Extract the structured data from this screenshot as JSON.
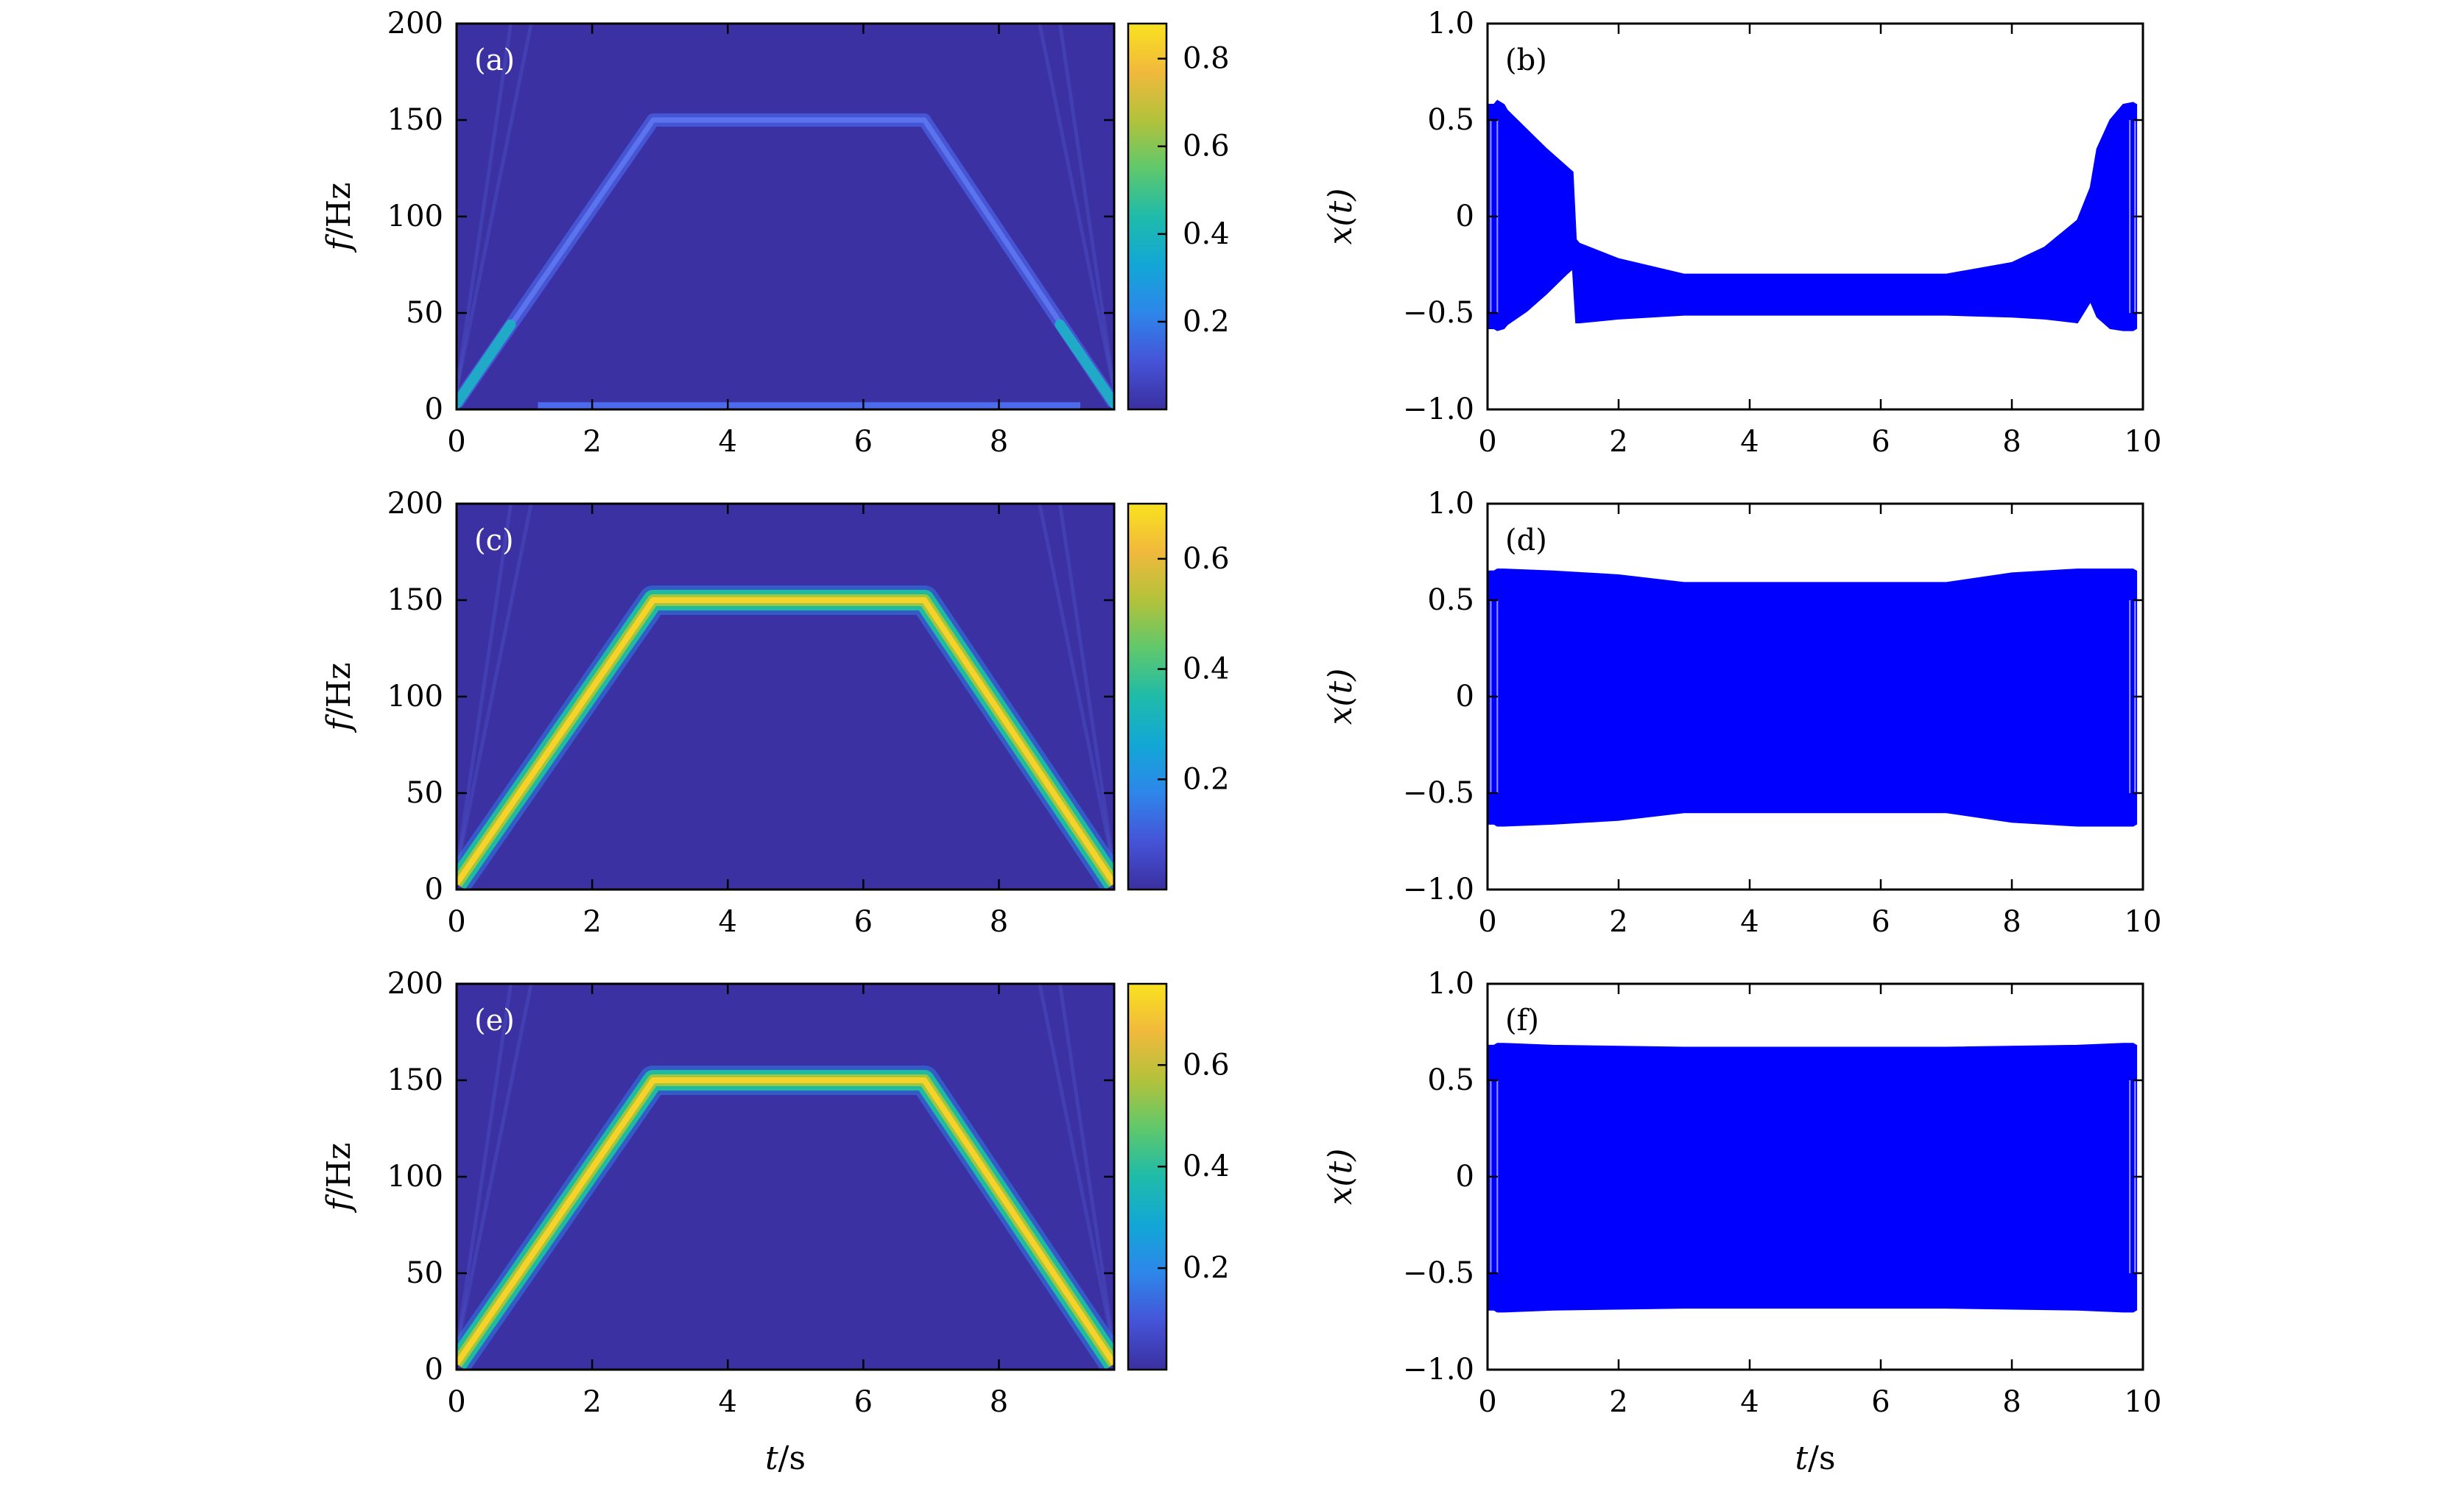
{
  "colors": {
    "spectrogram_background": "#3b31a3",
    "signal": "#0000ff",
    "frame": "#000000",
    "colormap": [
      "#3b2fa0",
      "#4554d8",
      "#2e86ea",
      "#12a7d6",
      "#1fbbaa",
      "#5fc86c",
      "#b3c23b",
      "#f1b93c",
      "#f9e21f"
    ]
  },
  "chart_data": [
    {
      "id": "a",
      "panel_label": "(a)",
      "type": "heatmap",
      "xlabel_var": "t",
      "xlabel_unit": "/s",
      "ylabel_var": "f",
      "ylabel_unit": "/Hz",
      "xlim": [
        0,
        9.7
      ],
      "ylim": [
        0,
        200
      ],
      "xticks": [
        0,
        2,
        4,
        6,
        8
      ],
      "yticks": [
        0,
        50,
        100,
        150,
        200
      ],
      "colorbar": {
        "min": 0,
        "max": 0.88,
        "ticks": [
          0.2,
          0.4,
          0.6,
          0.8
        ]
      },
      "ridge": {
        "t": [
          0,
          2.9,
          6.9,
          9.7
        ],
        "f": [
          3,
          150,
          150,
          3
        ],
        "peak_intensity": 0.15
      },
      "low_band": {
        "f": 2,
        "t_start": 1.2,
        "t_end": 9.2,
        "intensity": 0.08
      },
      "onset_intensity": 0.35
    },
    {
      "id": "b",
      "panel_label": "(b)",
      "type": "area",
      "xlabel_var": "t",
      "xlabel_unit": "/s",
      "ylabel_var": "x",
      "ylabel_unit": "(t)",
      "xlim": [
        0,
        10
      ],
      "ylim": [
        -1.0,
        1.0
      ],
      "xticks": [
        0,
        2,
        4,
        6,
        8,
        10
      ],
      "yticks": [
        1.0,
        0.5,
        0,
        -0.5,
        -1.0
      ],
      "ytick_labels": [
        "1.0",
        "0.5",
        "0",
        "−0.5",
        "−1.0"
      ],
      "envelope_t": [
        0,
        0.1,
        0.15,
        0.25,
        0.3,
        0.6,
        0.9,
        1.2,
        1.3,
        1.35,
        1.4,
        2.0,
        3.0,
        7.0,
        8.0,
        8.5,
        9.0,
        9.2,
        9.3,
        9.5,
        9.7,
        9.85,
        9.9
      ],
      "envelope_upper": [
        0.58,
        0.58,
        0.6,
        0.58,
        0.55,
        0.45,
        0.35,
        0.26,
        0.23,
        -0.12,
        -0.14,
        -0.22,
        -0.3,
        -0.3,
        -0.24,
        -0.16,
        -0.02,
        0.15,
        0.35,
        0.5,
        0.58,
        0.59,
        0.58
      ],
      "envelope_lower": [
        -0.58,
        -0.58,
        -0.59,
        -0.58,
        -0.56,
        -0.49,
        -0.4,
        -0.3,
        -0.27,
        -0.55,
        -0.55,
        -0.53,
        -0.51,
        -0.51,
        -0.52,
        -0.53,
        -0.55,
        -0.44,
        -0.52,
        -0.58,
        -0.59,
        -0.59,
        -0.58
      ]
    },
    {
      "id": "c",
      "panel_label": "(c)",
      "type": "heatmap",
      "xlabel_var": "t",
      "xlabel_unit": "/s",
      "ylabel_var": "f",
      "ylabel_unit": "/Hz",
      "xlim": [
        0,
        9.7
      ],
      "ylim": [
        0,
        200
      ],
      "xticks": [
        0,
        2,
        4,
        6,
        8
      ],
      "yticks": [
        0,
        50,
        100,
        150,
        200
      ],
      "colorbar": {
        "min": 0,
        "max": 0.7,
        "ticks": [
          0.2,
          0.4,
          0.6
        ]
      },
      "ridge": {
        "t": [
          0,
          2.9,
          6.9,
          9.7
        ],
        "f": [
          3,
          150,
          150,
          3
        ],
        "peak_intensity": 0.68
      }
    },
    {
      "id": "d",
      "panel_label": "(d)",
      "type": "area",
      "xlabel_var": "t",
      "xlabel_unit": "/s",
      "ylabel_var": "x",
      "ylabel_unit": "(t)",
      "xlim": [
        0,
        10
      ],
      "ylim": [
        -1.0,
        1.0
      ],
      "xticks": [
        0,
        2,
        4,
        6,
        8,
        10
      ],
      "yticks": [
        1.0,
        0.5,
        0,
        -0.5,
        -1.0
      ],
      "ytick_labels": [
        "1.0",
        "0.5",
        "0",
        "−0.5",
        "−1.0"
      ],
      "envelope_t": [
        0,
        0.1,
        0.15,
        0.25,
        1.0,
        2.0,
        3.0,
        7.0,
        8.0,
        9.0,
        9.7,
        9.85,
        9.9
      ],
      "envelope_upper": [
        0.65,
        0.65,
        0.66,
        0.66,
        0.65,
        0.63,
        0.59,
        0.59,
        0.64,
        0.66,
        0.66,
        0.66,
        0.65
      ],
      "envelope_lower": [
        -0.66,
        -0.66,
        -0.67,
        -0.67,
        -0.66,
        -0.64,
        -0.6,
        -0.6,
        -0.65,
        -0.67,
        -0.67,
        -0.67,
        -0.66
      ]
    },
    {
      "id": "e",
      "panel_label": "(e)",
      "type": "heatmap",
      "xlabel_var": "t",
      "xlabel_unit": "/s",
      "ylabel_var": "f",
      "ylabel_unit": "/Hz",
      "xlim": [
        0,
        9.7
      ],
      "ylim": [
        0,
        200
      ],
      "xticks": [
        0,
        2,
        4,
        6,
        8
      ],
      "yticks": [
        0,
        50,
        100,
        150,
        200
      ],
      "colorbar": {
        "min": 0,
        "max": 0.76,
        "ticks": [
          0.2,
          0.4,
          0.6
        ]
      },
      "ridge": {
        "t": [
          0,
          2.9,
          6.9,
          9.7
        ],
        "f": [
          3,
          150,
          150,
          3
        ],
        "peak_intensity": 0.74
      }
    },
    {
      "id": "f",
      "panel_label": "(f)",
      "type": "area",
      "xlabel_var": "t",
      "xlabel_unit": "/s",
      "ylabel_var": "x",
      "ylabel_unit": "(t)",
      "xlim": [
        0,
        10
      ],
      "ylim": [
        -1.0,
        1.0
      ],
      "xticks": [
        0,
        2,
        4,
        6,
        8,
        10
      ],
      "yticks": [
        1.0,
        0.5,
        0,
        -0.5,
        -1.0
      ],
      "ytick_labels": [
        "1.0",
        "0.5",
        "0",
        "−0.5",
        "−1.0"
      ],
      "envelope_t": [
        0,
        0.1,
        0.15,
        0.25,
        1.0,
        3.0,
        7.0,
        9.0,
        9.7,
        9.85,
        9.9
      ],
      "envelope_upper": [
        0.68,
        0.68,
        0.69,
        0.69,
        0.68,
        0.67,
        0.67,
        0.68,
        0.69,
        0.69,
        0.68
      ],
      "envelope_lower": [
        -0.69,
        -0.69,
        -0.7,
        -0.7,
        -0.69,
        -0.68,
        -0.68,
        -0.69,
        -0.7,
        -0.7,
        -0.69
      ]
    }
  ]
}
